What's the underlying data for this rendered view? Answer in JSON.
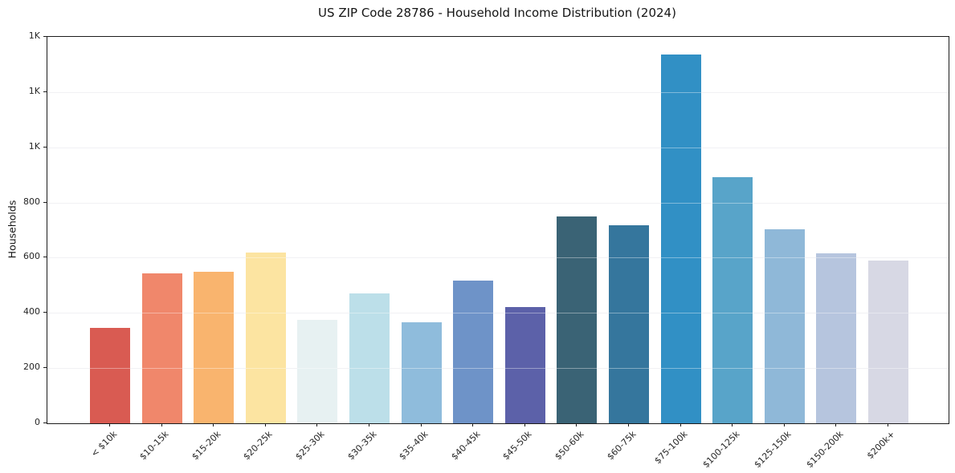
{
  "chart_data": {
    "type": "bar",
    "title": "US ZIP Code 28786 - Household Income Distribution (2024)",
    "xlabel": "",
    "ylabel": "Households",
    "categories": [
      "< $10k",
      "$10-15k",
      "$15-20k",
      "$20-25k",
      "$25-30k",
      "$30-35k",
      "$35-40k",
      "$40-45k",
      "$45-50k",
      "$50-60k",
      "$60-75k",
      "$75-100k",
      "$100-125k",
      "$125-150k",
      "$150-200k",
      "$200k+"
    ],
    "values": [
      345,
      542,
      548,
      620,
      375,
      470,
      365,
      516,
      420,
      750,
      718,
      1335,
      892,
      704,
      617,
      590
    ],
    "bar_colors": [
      "#d95b52",
      "#f0876b",
      "#f9b46e",
      "#fce4a1",
      "#e7f1f2",
      "#bcdfe9",
      "#8fbcdc",
      "#6e93c8",
      "#5c61a9",
      "#3a6375",
      "#35769d",
      "#3190c5",
      "#58a4c9",
      "#8fb8d8",
      "#b6c5de",
      "#d7d8e4"
    ],
    "ylim": [
      0,
      1400
    ],
    "yticks": [
      {
        "value": 0,
        "label": "0"
      },
      {
        "value": 200,
        "label": "200"
      },
      {
        "value": 400,
        "label": "400"
      },
      {
        "value": 600,
        "label": "600"
      },
      {
        "value": 800,
        "label": "800"
      },
      {
        "value": 1000,
        "label": "1K"
      },
      {
        "value": 1200,
        "label": "1K"
      },
      {
        "value": 1400,
        "label": "1K"
      }
    ],
    "grid": "horizontal",
    "legend": "none"
  }
}
